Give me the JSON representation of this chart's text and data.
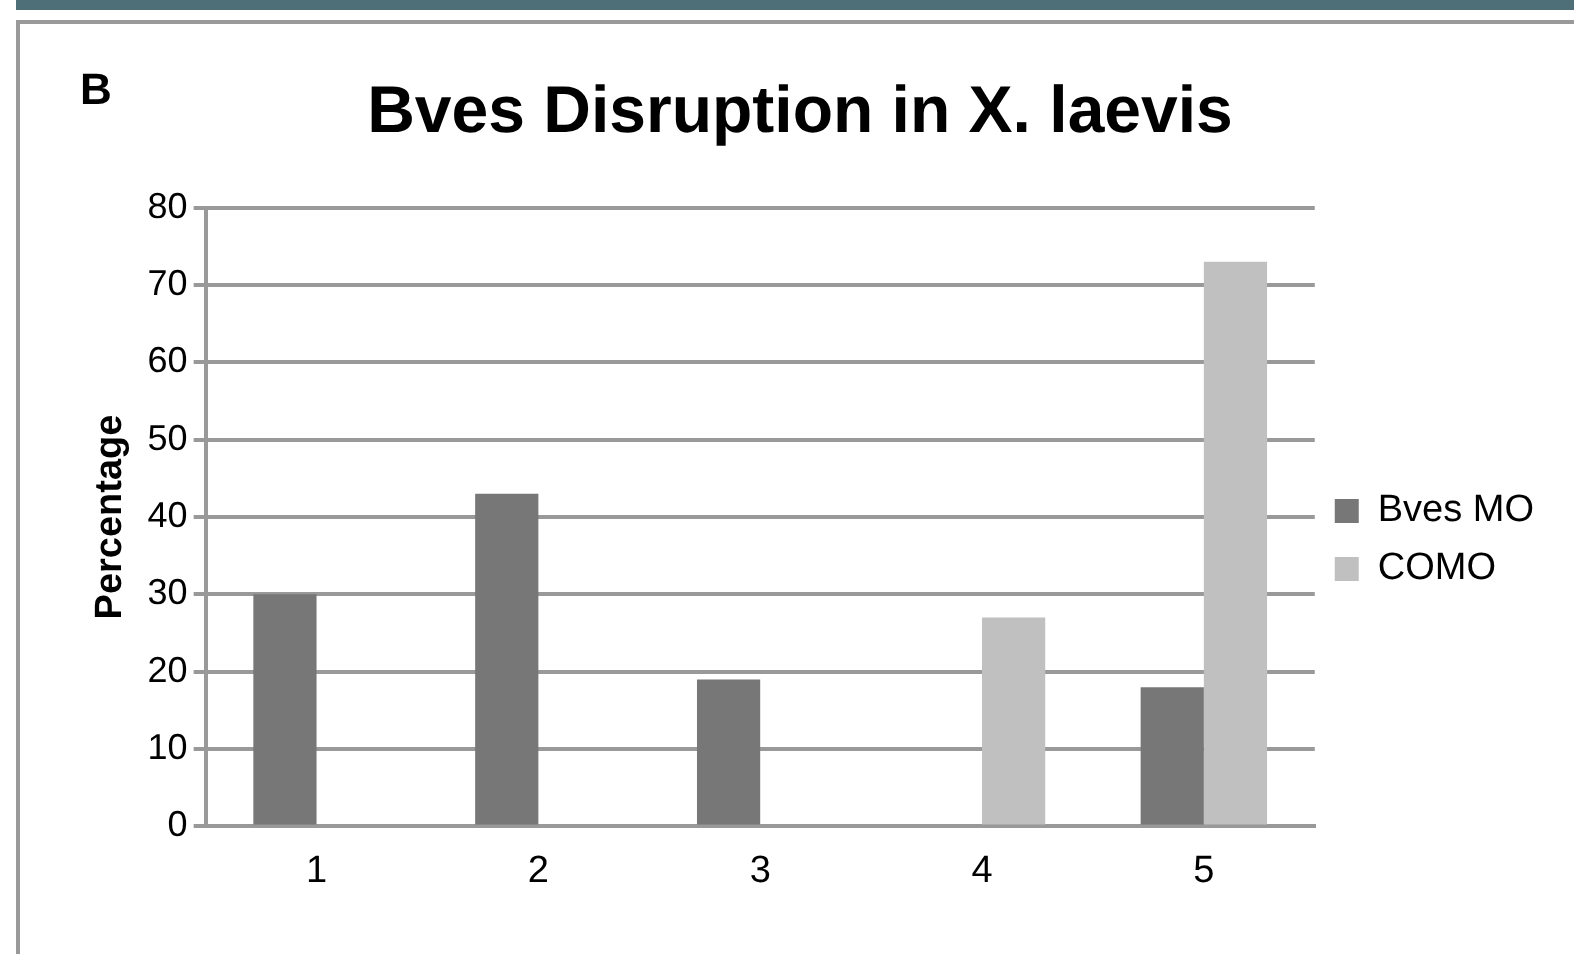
{
  "chart_data": {
    "type": "bar",
    "title": "Bves Disruption in X. laevis",
    "ylabel": "Percentage",
    "annotations": [
      "B"
    ],
    "categories": [
      "1",
      "2",
      "3",
      "4",
      "5"
    ],
    "series": [
      {
        "name": "Bves MO",
        "color": "#777777",
        "values": [
          30,
          43,
          19,
          0,
          18
        ]
      },
      {
        "name": "COMO",
        "color": "#c0c0c0",
        "values": [
          0,
          0,
          0,
          27,
          73
        ]
      }
    ],
    "ylim": [
      0,
      80
    ],
    "yticks": [
      0,
      10,
      20,
      30,
      40,
      50,
      60,
      70,
      80
    ],
    "grid": "y",
    "legend": "right"
  }
}
